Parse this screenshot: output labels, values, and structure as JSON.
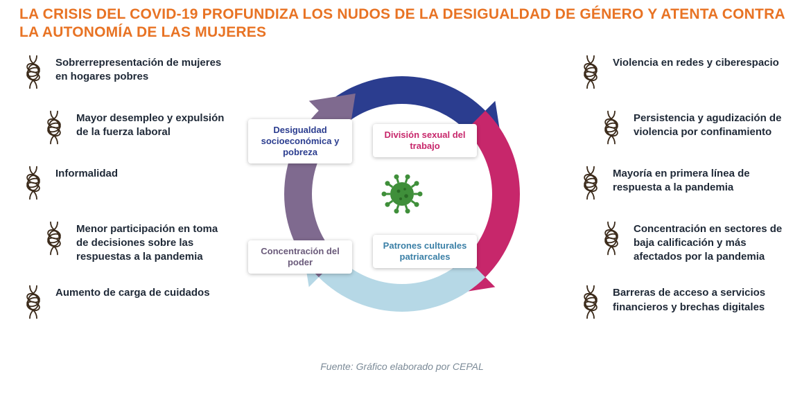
{
  "title": "LA CRISIS DEL COVID-19 PROFUNDIZA LOS NUDOS DE LA DESIGUALDAD DE GÉNERO Y ATENTA CONTRA LA AUTONOMÍA DE LAS MUJERES",
  "caption": "Fuente: Gráfico elaborado por CEPAL",
  "colors": {
    "title": "#e87324",
    "arrow_top": "#2b3d8f",
    "arrow_right": "#c7276b",
    "arrow_bottom": "#b6d8e6",
    "arrow_left": "#7f6a8f",
    "node_top_text": "#2b3d8f",
    "node_right_text": "#c7276b",
    "node_bottom_text": "#3a7fa6",
    "node_left_text": "#6a5a7a",
    "virus": "#3f8f3a",
    "knot_stroke": "#3b2a1a"
  },
  "cycle": {
    "type": "circular-arrow-diagram",
    "nodes": [
      {
        "key": "top",
        "label": "Desigualdad socioeconómica y pobreza"
      },
      {
        "key": "right",
        "label": "División sexual del trabajo"
      },
      {
        "key": "bottom",
        "label": "Patrones culturales patriarcales"
      },
      {
        "key": "left",
        "label": "Concentración del poder"
      }
    ]
  },
  "left_items": [
    {
      "text": "Sobrerrepresentación de mujeres en hogares pobres",
      "indent": false
    },
    {
      "text": "Mayor desempleo y expulsión de la fuerza laboral",
      "indent": true
    },
    {
      "text": "Informalidad",
      "indent": false
    },
    {
      "text": "Menor participación en toma de decisiones sobre las respuestas a la pandemia",
      "indent": true
    },
    {
      "text": "Aumento de carga de cuidados",
      "indent": false
    }
  ],
  "right_items": [
    {
      "text": "Violencia en redes y ciberespacio",
      "indent": false
    },
    {
      "text": "Persistencia y agudización de violencia por confinamiento",
      "indent": true
    },
    {
      "text": "Mayoría en primera línea de respuesta a la pandemia",
      "indent": false
    },
    {
      "text": "Concentración en sectores de baja calificación y más afectados por la pandemia",
      "indent": true
    },
    {
      "text": "Barreras de acceso a servicios financieros y brechas digitales",
      "indent": false
    }
  ]
}
